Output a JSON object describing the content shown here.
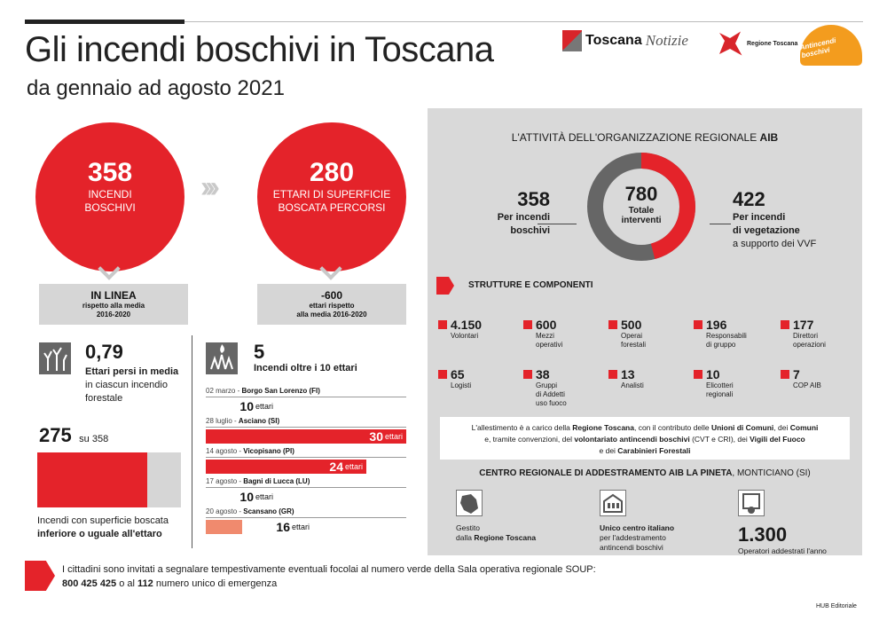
{
  "header": {
    "title": "Gli incendi boschivi in Toscana",
    "subtitle": "da gennaio ad agosto 2021",
    "logo_toscana_1": "Toscana",
    "logo_toscana_2": "Notizie",
    "logo_regione": "Regione Toscana",
    "logo_aib": "Antincendi boschivi"
  },
  "left": {
    "circle1": {
      "num": "358",
      "line1": "INCENDI",
      "line2": "BOSCHIVI"
    },
    "circle2": {
      "num": "280",
      "line1": "ETTARI DI SUPERFICIE",
      "line2": "BOSCATA PERCORSI"
    },
    "box1": {
      "bold": "IN LINEA",
      "line1": "rispetto alla media",
      "line2": "2016-2020"
    },
    "box2": {
      "bold": "-600",
      "line1": "ettari rispetto",
      "line2": "alla media 2016-2020"
    },
    "avg": {
      "value": "0,79",
      "bold": "Ettari persi in media",
      "line2": "in ciascun incendio",
      "line3": "forestale"
    },
    "ratio": {
      "value": "275",
      "of": "su 358",
      "fraction": 0.768,
      "line1": "Incendi con superficie boscata",
      "line2": "inferiore o uguale all'ettaro"
    },
    "over10": {
      "value": "5",
      "label": "Incendi oltre i 10 ettari"
    },
    "fires": [
      {
        "date": "02 marzo - ",
        "place": "Borgo San Lorenzo (FI)",
        "value": "10",
        "unit": "ettari",
        "ha": 10
      },
      {
        "date": "28 luglio - ",
        "place": "Asciano (SI)",
        "value": "30",
        "unit": "ettari",
        "ha": 30
      },
      {
        "date": "14 agosto - ",
        "place": "Vicopisano (PI)",
        "value": "24",
        "unit": "ettari",
        "ha": 24
      },
      {
        "date": "17 agosto - ",
        "place": "Bagni di Lucca (LU)",
        "value": "10",
        "unit": "ettari",
        "ha": 10
      },
      {
        "date": "20 agosto - ",
        "place": "Scansano (GR)",
        "value": "16",
        "unit": "ettari",
        "ha": 16
      }
    ]
  },
  "panel": {
    "title": "L'ATTIVITÀ DELL'ORGANIZZAZIONE REGIONALE ",
    "title_bold": "AIB",
    "left_num": "358",
    "left_l1": "Per incendi",
    "left_l2": "boschivi",
    "center_num": "780",
    "center_l1": "Totale",
    "center_l2": "interventi",
    "right_num": "422",
    "right_l1": "Per incendi",
    "right_l2": "di vegetazione",
    "right_l3": "a supporto dei VVF",
    "strutture": "STRUTTURE E COMPONENTI",
    "components": [
      {
        "n": "4.150",
        "l1": "Volontari",
        "l2": "",
        "l3": ""
      },
      {
        "n": "600",
        "l1": "Mezzi",
        "l2": "operativi",
        "l3": ""
      },
      {
        "n": "500",
        "l1": "Operai",
        "l2": "forestali",
        "l3": ""
      },
      {
        "n": "196",
        "l1": "Responsabili",
        "l2": "di gruppo",
        "l3": ""
      },
      {
        "n": "177",
        "l1": "Direttori",
        "l2": "operazioni",
        "l3": ""
      },
      {
        "n": "65",
        "l1": "Logisti",
        "l2": "",
        "l3": ""
      },
      {
        "n": "38",
        "l1": "Gruppi",
        "l2": "di Addetti",
        "l3": "uso fuoco"
      },
      {
        "n": "13",
        "l1": "Analisti",
        "l2": "",
        "l3": ""
      },
      {
        "n": "10",
        "l1": "Elicotteri",
        "l2": "regionali",
        "l3": ""
      },
      {
        "n": "7",
        "l1": "COP AIB",
        "l2": "",
        "l3": ""
      }
    ],
    "note": {
      "a": "L'allestimento è a carico della ",
      "b": "Regione Toscana",
      "c": ", con il contributo delle ",
      "d": "Unioni di Comuni",
      "e": ", dei ",
      "f": "Comuni",
      "g": "e, tramite convenzioni, del ",
      "h": "volontariato antincendi boschivi",
      "i": " (CVT e CRI), dei ",
      "j": "Vigili del Fuoco",
      "k": "e dei ",
      "l": "Carabinieri Forestali"
    },
    "centro_bold": "CENTRO REGIONALE DI ADDESTRAMENTO AIB LA PINETA",
    "centro_rest": ", MONTICIANO (SI)",
    "c1_l1": "Gestito",
    "c1_l2": "dalla ",
    "c1_b": "Regione Toscana",
    "c2_b": "Unico centro italiano",
    "c2_l2": "per l'addestramento",
    "c2_l3": "antincendi boschivi",
    "c3_num": "1.300",
    "c3_l": "Operatori addestrati l'anno"
  },
  "footer": {
    "line1": "I cittadini sono invitati a segnalare tempestivamente eventuali focolai al numero verde della Sala operativa regionale SOUP:",
    "num1": "800 425 425",
    "mid": " o al ",
    "num2": "112",
    "end": " numero unico di emergenza",
    "credit": "HUB Editoriale"
  },
  "colors": {
    "red": "#e4232a",
    "gray": "#d9d9d9",
    "salmon": "#f08a6e"
  }
}
